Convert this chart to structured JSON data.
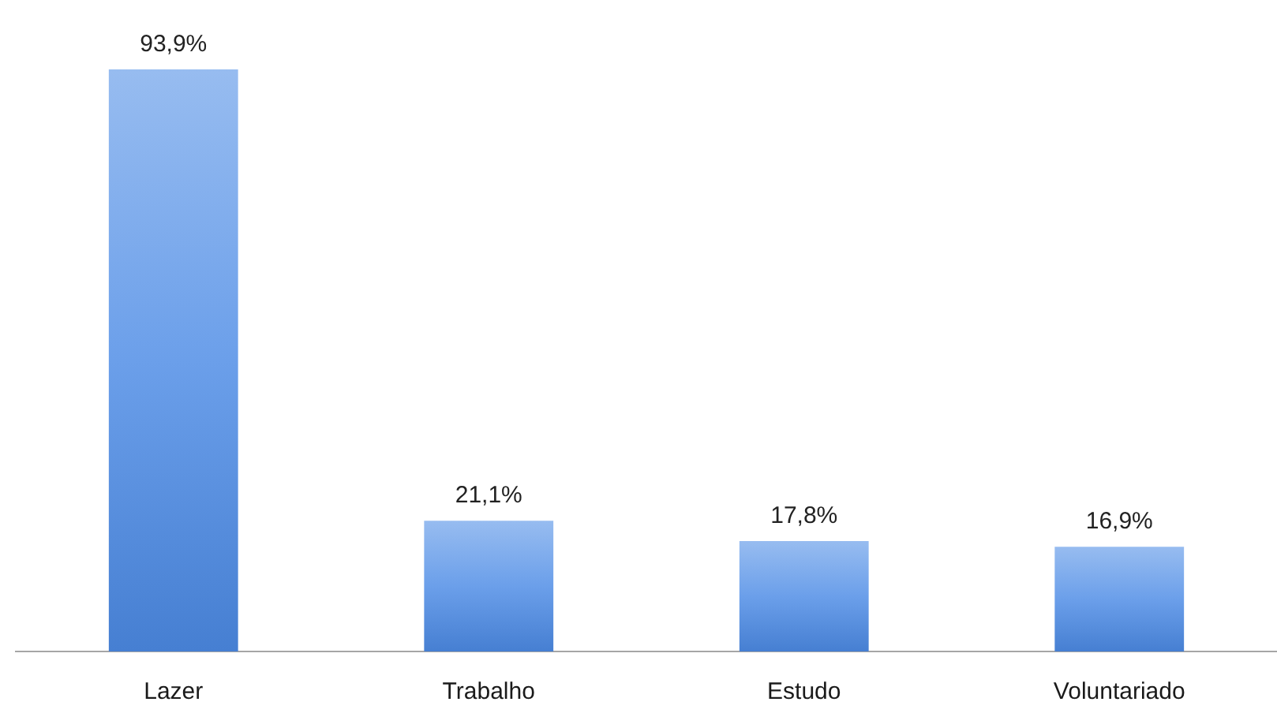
{
  "chart_data": {
    "type": "bar",
    "categories": [
      "Lazer",
      "Trabalho",
      "Estudo",
      "Voluntariado"
    ],
    "values": [
      93.9,
      21.1,
      17.8,
      16.9
    ],
    "color": "#6b9fea",
    "value_labels": [
      "93,9%",
      "21,1%",
      "17,8%",
      "16,9%"
    ]
  }
}
